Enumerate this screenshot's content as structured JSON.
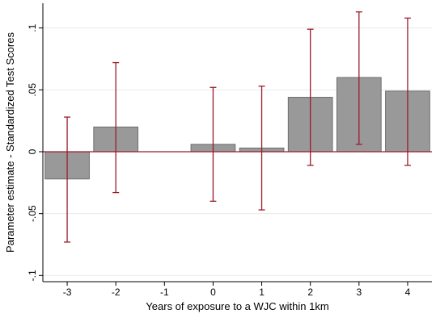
{
  "chart_data": {
    "type": "bar",
    "xlabel": "Years of exposure to a WJC within 1km",
    "ylabel": "Parameter estimate - Standardized Test Scores",
    "categories": [
      "-3",
      "-2",
      "-1",
      "0",
      "1",
      "2",
      "3",
      "4"
    ],
    "values": [
      -0.022,
      0.02,
      0.0,
      0.006,
      0.003,
      0.044,
      0.06,
      0.049
    ],
    "ci_low": [
      -0.073,
      -0.033,
      null,
      -0.04,
      -0.047,
      -0.011,
      0.006,
      -0.011
    ],
    "ci_high": [
      0.028,
      0.072,
      null,
      0.052,
      0.053,
      0.099,
      0.113,
      0.108
    ],
    "ylim": [
      -0.105,
      0.12
    ],
    "yticks": [
      -0.1,
      -0.05,
      0,
      0.05,
      0.1
    ],
    "ytick_labels": [
      "-.1",
      "-.05",
      "0",
      ".05",
      ".1"
    ],
    "grid": true,
    "colors": {
      "bar_fill": "#999999",
      "bar_stroke": "#6e6e6e",
      "error_bar": "#9b1c2c",
      "zero_line": "#9b1c2c",
      "grid": "#e9e9e9",
      "axis": "#000000"
    }
  }
}
